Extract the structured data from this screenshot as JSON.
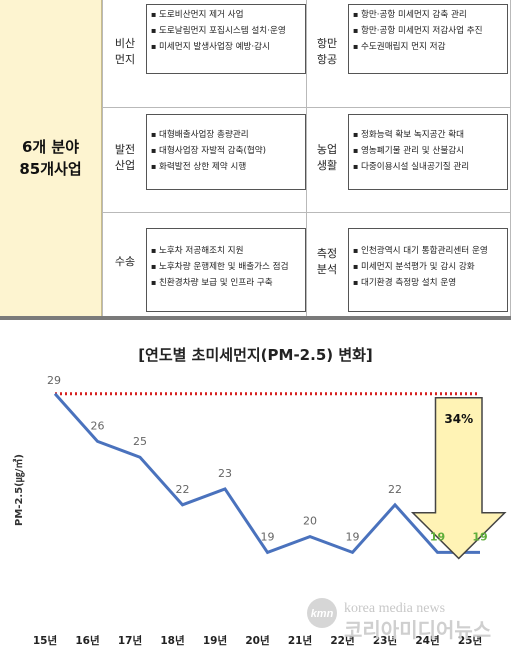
{
  "program": {
    "summary_line1": "6개 분야",
    "summary_line2": "85개사업",
    "sectors": [
      {
        "name_line1": "비산",
        "name_line2": "먼지",
        "items": [
          "도로비산먼지 제거 사업",
          "도로날림먼지 포집시스템 설치·운영",
          "미세먼지 발생사업장 예방·감시"
        ]
      },
      {
        "name_line1": "항만",
        "name_line2": "항공",
        "items": [
          "항만·공항 미세먼지 감축 관리",
          "항만·공항 미세먼지 저감사업 추진",
          "수도권매립지 먼지 저감"
        ]
      },
      {
        "name_line1": "발전",
        "name_line2": "산업",
        "items": [
          "대형배출사업장 총량관리",
          "대형사업장 자발적 감축(협약)",
          "화력발전 상한 제약 시행"
        ]
      },
      {
        "name_line1": "농업",
        "name_line2": "생활",
        "items": [
          "정화능력 확보 녹지공간 확대",
          "영농폐기물 관리 및 산불감시",
          "다중이용시설 실내공기질 관리"
        ]
      },
      {
        "name_line1": "수송",
        "name_line2": "",
        "items": [
          "노후차 저공해조치 지원",
          "노후차량 운행제한 및 배출가스 점검",
          "친환경차량 보급 및 인프라 구축"
        ]
      },
      {
        "name_line1": "측정",
        "name_line2": "분석",
        "items": [
          "인천광역시 대기 통합관리센터 운영",
          "미세먼지 분석평가 및 감시 강화",
          "대기환경 측정망 설치 운영"
        ]
      }
    ]
  },
  "chart_data": {
    "type": "line",
    "title": "[연도별 초미세먼지(PM-2.5) 변화]",
    "ylabel": "PM-2.5(㎍/㎥)",
    "xlabel": "",
    "categories": [
      "15년",
      "16년",
      "17년",
      "18년",
      "19년",
      "20년",
      "21년",
      "22년",
      "23년",
      "24년",
      "25년"
    ],
    "series": [
      {
        "values": [
          29,
          26,
          25,
          22,
          23,
          19,
          20,
          19,
          22,
          19,
          19
        ]
      }
    ],
    "reference_line": 29,
    "reduction_label": "34%",
    "ylim": [
      16,
      30.5
    ],
    "grid": false,
    "colors": {
      "line": "#4a72bd",
      "reference": "#d61f1f",
      "label": "#666666",
      "label_highlight": "#5fae3a",
      "arrow_fill": "#fff3b5",
      "arrow_stroke": "#444444"
    }
  },
  "watermark": {
    "logo_text": "kmn",
    "english": "korea media news",
    "korean": "코리아미디어뉴스"
  }
}
